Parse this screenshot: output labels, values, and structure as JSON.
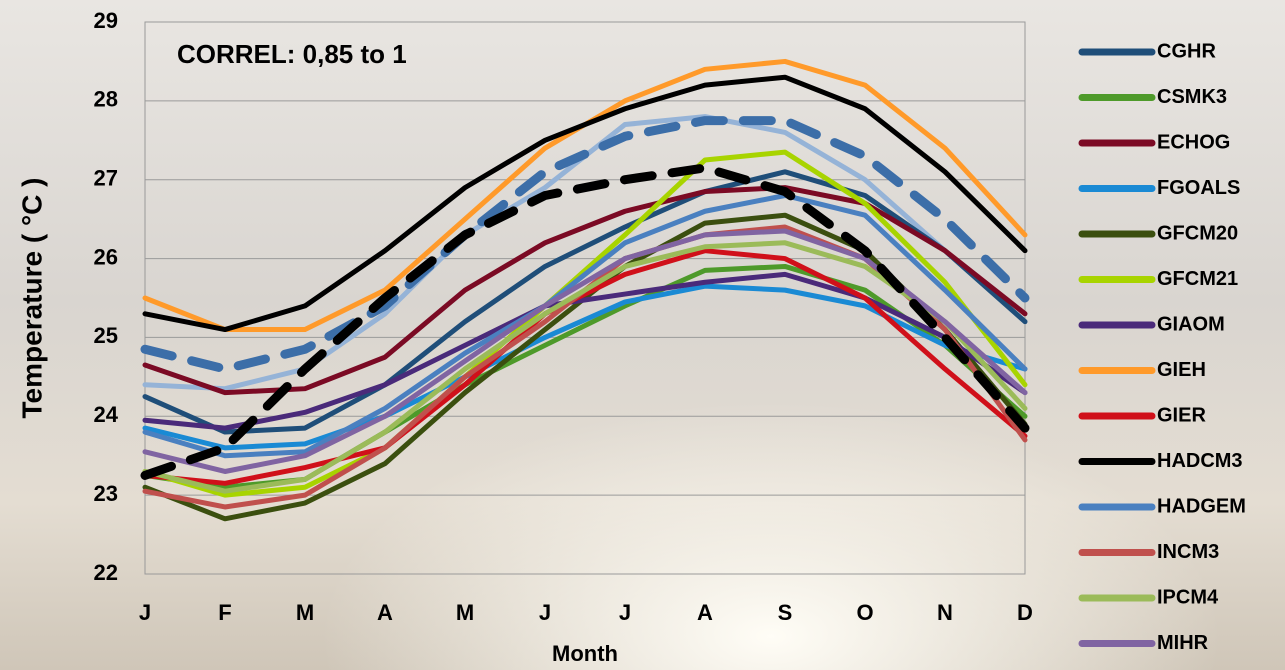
{
  "chart_data": {
    "type": "line",
    "annotation": "CORREL:  0,85  to   1",
    "x_label": "Month",
    "y_label": "Temperature ( °C )",
    "categories": [
      "J",
      "F",
      "M",
      "A",
      "M",
      "J",
      "J",
      "A",
      "S",
      "O",
      "N",
      "D"
    ],
    "ylim": [
      22,
      29
    ],
    "yticks": [
      22,
      23,
      24,
      25,
      26,
      27,
      28,
      29
    ],
    "grid": true,
    "series": [
      {
        "color": "#95b3d7",
        "values": [
          24.4,
          24.35,
          24.6,
          25.3,
          26.3,
          26.9,
          27.7,
          27.8,
          27.6,
          27.0,
          26.1,
          25.2
        ]
      },
      {
        "name": "CGHR",
        "color": "#1f4e79",
        "values": [
          24.25,
          23.8,
          23.85,
          24.4,
          25.2,
          25.9,
          26.4,
          26.85,
          27.1,
          26.8,
          26.1,
          25.2
        ]
      },
      {
        "name": "CSMK3",
        "color": "#4e9a2a",
        "values": [
          23.25,
          23.1,
          23.2,
          23.8,
          24.4,
          24.9,
          25.4,
          25.85,
          25.9,
          25.6,
          24.9,
          24.0
        ]
      },
      {
        "name": "ECHOG",
        "color": "#7b0a24",
        "values": [
          24.65,
          24.3,
          24.35,
          24.75,
          25.6,
          26.2,
          26.6,
          26.85,
          26.9,
          26.7,
          26.1,
          25.3
        ]
      },
      {
        "name": "FGOALS",
        "color": "#1a8ad4",
        "values": [
          23.85,
          23.6,
          23.65,
          24.0,
          24.5,
          25.0,
          25.45,
          25.65,
          25.6,
          25.4,
          24.9,
          24.6
        ]
      },
      {
        "name": "GFCM20",
        "color": "#3b4f0f",
        "values": [
          23.1,
          22.7,
          22.9,
          23.4,
          24.3,
          25.1,
          25.9,
          26.45,
          26.55,
          26.1,
          25.1,
          23.9
        ]
      },
      {
        "name": "GFCM21",
        "color": "#a8d400",
        "values": [
          23.3,
          23.0,
          23.1,
          23.6,
          24.5,
          25.4,
          26.3,
          27.25,
          27.35,
          26.7,
          25.7,
          24.4
        ]
      },
      {
        "name": "GIAOM",
        "color": "#4a2a7a",
        "values": [
          23.95,
          23.85,
          24.05,
          24.4,
          24.9,
          25.4,
          25.55,
          25.7,
          25.8,
          25.5,
          25.0,
          24.3
        ]
      },
      {
        "name": "GIEH",
        "color": "#ff9a2a",
        "values": [
          25.5,
          25.1,
          25.1,
          25.6,
          26.5,
          27.4,
          28.0,
          28.4,
          28.5,
          28.2,
          27.4,
          26.3
        ]
      },
      {
        "name": "GIER",
        "color": "#d0101a",
        "values": [
          23.25,
          23.15,
          23.35,
          23.6,
          24.4,
          25.3,
          25.8,
          26.1,
          26.0,
          25.5,
          24.6,
          23.75
        ]
      },
      {
        "name": "HADCM3",
        "color": "#000000",
        "values": [
          25.3,
          25.1,
          25.4,
          26.1,
          26.9,
          27.5,
          27.9,
          28.2,
          28.3,
          27.9,
          27.1,
          26.1
        ]
      },
      {
        "name": "HADGEM",
        "color": "#4a80c0",
        "values": [
          23.8,
          23.5,
          23.55,
          24.1,
          24.8,
          25.4,
          26.2,
          26.6,
          26.8,
          26.55,
          25.6,
          24.6
        ]
      },
      {
        "name": "INCM3",
        "color": "#c0504d",
        "values": [
          23.05,
          22.85,
          23.0,
          23.6,
          24.5,
          25.2,
          26.0,
          26.3,
          26.4,
          26.0,
          25.1,
          23.7
        ]
      },
      {
        "name": "IPCM4",
        "color": "#9bbb59",
        "values": [
          23.3,
          23.05,
          23.2,
          23.8,
          24.6,
          25.3,
          25.9,
          26.15,
          26.2,
          25.9,
          25.2,
          24.1
        ]
      },
      {
        "name": "MIHR",
        "color": "#8064a2",
        "values": [
          23.55,
          23.3,
          23.5,
          24.0,
          24.7,
          25.4,
          26.0,
          26.3,
          26.35,
          26.0,
          25.2,
          24.3
        ]
      },
      {
        "color": "#3c6ea8",
        "style": "dashed",
        "values": [
          24.85,
          24.6,
          24.85,
          25.4,
          26.3,
          27.1,
          27.55,
          27.75,
          27.75,
          27.3,
          26.5,
          25.5
        ]
      },
      {
        "color": "#000000",
        "style": "dashed",
        "values": [
          23.25,
          23.6,
          24.6,
          25.5,
          26.3,
          26.8,
          27.0,
          27.15,
          26.85,
          26.1,
          25.0,
          23.85
        ]
      }
    ]
  }
}
